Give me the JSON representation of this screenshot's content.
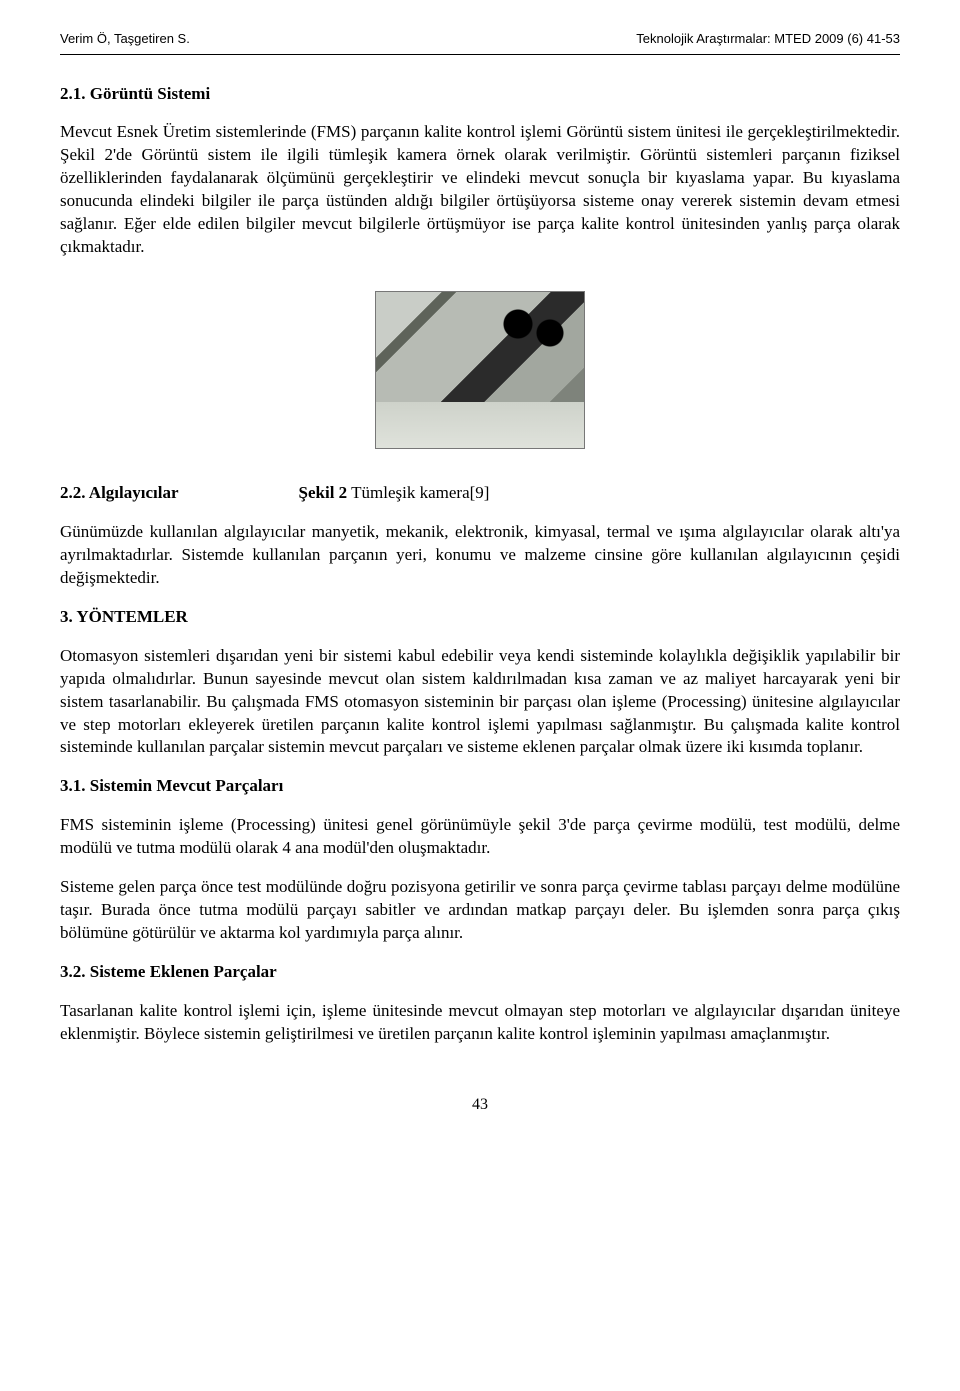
{
  "header": {
    "left": "Verim Ö, Taşgetiren S.",
    "right": "Teknolojik Araştırmalar: MTED 2009 (6) 41-53"
  },
  "section21": {
    "title": "2.1. Görüntü Sistemi",
    "para": "Mevcut Esnek Üretim sistemlerinde (FMS) parçanın kalite kontrol işlemi Görüntü sistem ünitesi ile gerçekleştirilmektedir. Şekil 2'de Görüntü sistem ile ilgili tümleşik kamera örnek olarak verilmiştir. Görüntü sistemleri parçanın fiziksel özelliklerinden faydalanarak ölçümünü gerçekleştirir ve elindeki mevcut sonuçla bir kıyaslama yapar. Bu kıyaslama sonucunda elindeki bilgiler ile parça üstünden aldığı bilgiler örtüşüyorsa sisteme onay vererek sistemin devam etmesi sağlanır. Eğer elde edilen bilgiler mevcut bilgilerle örtüşmüyor ise parça kalite kontrol ünitesinden yanlış parça olarak çıkmaktadır."
  },
  "figure2": {
    "label_bold": "Şekil 2",
    "label_rest": " Tümleşik kamera[9]"
  },
  "section22": {
    "title": "2.2. Algılayıcılar",
    "para": "Günümüzde kullanılan algılayıcılar manyetik, mekanik, elektronik, kimyasal, termal ve ışıma algılayıcılar olarak altı'ya ayrılmaktadırlar. Sistemde kullanılan parçanın yeri, konumu ve malzeme cinsine göre kullanılan algılayıcının çeşidi değişmektedir."
  },
  "section3": {
    "title": "3. YÖNTEMLER",
    "para": "Otomasyon sistemleri dışarıdan yeni bir sistemi kabul edebilir veya kendi sisteminde kolaylıkla değişiklik yapılabilir bir yapıda olmalıdırlar. Bunun sayesinde mevcut olan sistem kaldırılmadan kısa zaman ve az maliyet harcayarak yeni bir sistem tasarlanabilir. Bu çalışmada FMS otomasyon sisteminin bir parçası olan işleme (Processing) ünitesine algılayıcılar ve step motorları ekleyerek üretilen parçanın kalite kontrol işlemi yapılması sağlanmıştır. Bu çalışmada kalite kontrol sisteminde kullanılan parçalar sistemin mevcut parçaları ve sisteme eklenen parçalar olmak üzere iki kısımda toplanır."
  },
  "section31": {
    "title": "3.1. Sistemin Mevcut Parçaları",
    "para1": "FMS sisteminin işleme (Processing) ünitesi genel görünümüyle şekil 3'de parça çevirme modülü, test modülü, delme modülü ve tutma modülü olarak 4 ana modül'den oluşmaktadır.",
    "para2": "Sisteme gelen parça önce test modülünde doğru pozisyona getirilir ve sonra parça çevirme tablası parçayı delme modülüne taşır. Burada önce tutma modülü parçayı sabitler ve ardından matkap parçayı deler. Bu işlemden sonra parça çıkış bölümüne götürülür ve aktarma kol yardımıyla parça alınır."
  },
  "section32": {
    "title": "3.2. Sisteme Eklenen Parçalar",
    "para": "Tasarlanan kalite kontrol işlemi için, işleme ünitesinde mevcut olmayan step motorları ve algılayıcılar dışarıdan üniteye eklenmiştir. Böylece sistemin geliştirilmesi ve üretilen parçanın kalite kontrol işleminin yapılması amaçlanmıştır."
  },
  "pageNumber": "43"
}
